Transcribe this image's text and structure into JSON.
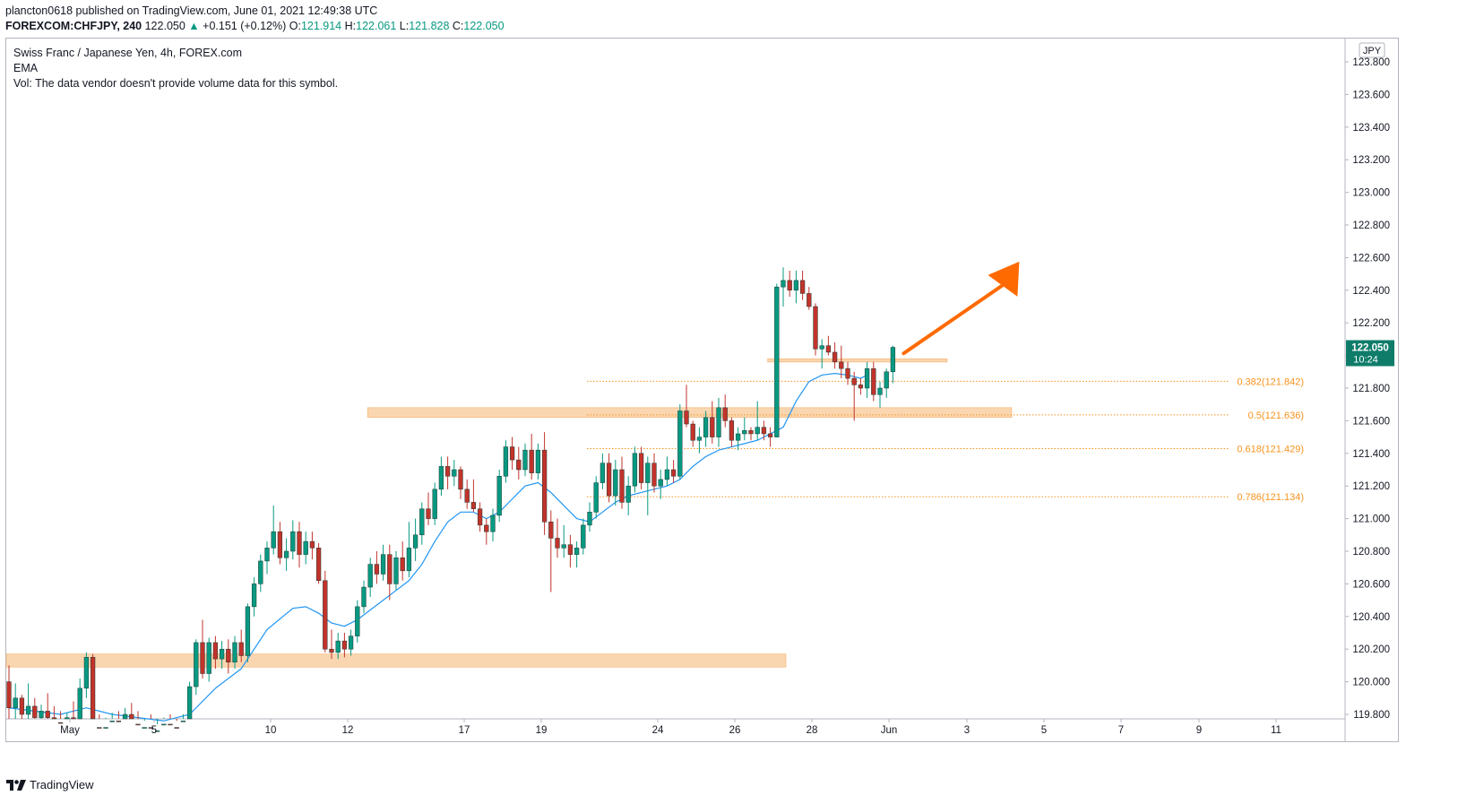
{
  "header": {
    "line1": "plancton0618 published on TradingView.com, June 01, 2021 12:49:38 UTC",
    "symbol": "FOREXCOM:CHFJPY, 240",
    "last": "122.050",
    "change": "+0.151 (+0.12%)",
    "o_label": "O:",
    "o_value": "121.914",
    "h_label": "H:",
    "h_value": "122.061",
    "l_label": "L:",
    "l_value": "121.828",
    "c_label": "C:",
    "c_value": "122.050"
  },
  "legend": {
    "title": "Swiss Franc / Japanese Yen, 4h, FOREX.com",
    "ema": "EMA",
    "vol": "Vol: The data vendor doesn't provide volume data for this symbol."
  },
  "footer": {
    "brand": "TradingView"
  },
  "colors": {
    "up": "#089981",
    "down": "#c2332b",
    "ema": "#2196f3",
    "fib": "#f7931e",
    "zone": "#f8c895",
    "arrow": "#ff6a00"
  },
  "chart_data": {
    "type": "candlestick",
    "currency": "JPY",
    "price_ticks": [
      "123.800",
      "123.600",
      "123.400",
      "123.200",
      "123.000",
      "122.800",
      "122.600",
      "122.400",
      "122.200",
      "122.000",
      "121.800",
      "121.600",
      "121.400",
      "121.200",
      "121.000",
      "120.800",
      "120.600",
      "120.400",
      "120.200",
      "120.000",
      "119.800"
    ],
    "price_tick_values": [
      123.8,
      123.6,
      123.4,
      123.2,
      123.0,
      122.8,
      122.6,
      122.4,
      122.2,
      122.0,
      121.8,
      121.6,
      121.4,
      121.2,
      121.0,
      120.8,
      120.6,
      120.4,
      120.2,
      120.0,
      119.8
    ],
    "ylim": [
      119.79,
      123.9
    ],
    "time_ticks": [
      "May",
      "5",
      "10",
      "12",
      "17",
      "19",
      "24",
      "26",
      "28",
      "Jun",
      "3",
      "5",
      "7",
      "9",
      "11"
    ],
    "last_price_label": "122.050",
    "countdown_label": "10:24",
    "fib_levels": [
      {
        "label": "0.382(121.842)",
        "value": 121.842
      },
      {
        "label": "0.5(121.636)",
        "value": 121.636
      },
      {
        "label": "0.618(121.429)",
        "value": 121.429
      },
      {
        "label": "0.786(121.134)",
        "value": 121.134
      }
    ],
    "zones": [
      {
        "from_bar": 0,
        "to_bar": 120,
        "low": 120.09,
        "high": 120.17
      },
      {
        "from_bar": 56,
        "to_bar": 155,
        "low": 121.62,
        "high": 121.68
      },
      {
        "from_bar": 118,
        "to_bar": 145,
        "low": 121.96,
        "high": 121.98
      }
    ],
    "arrow": {
      "from_bar": 132,
      "from_price": 121.98,
      "to_bar": 142,
      "to_price": 122.57
    },
    "candles": [
      [
        120.0,
        120.1,
        119.72,
        119.84
      ],
      [
        119.84,
        119.99,
        119.75,
        119.9
      ],
      [
        119.9,
        119.92,
        119.73,
        119.8
      ],
      [
        119.8,
        119.99,
        119.7,
        119.85
      ],
      [
        119.85,
        119.9,
        119.72,
        119.78
      ],
      [
        119.78,
        119.86,
        119.65,
        119.82
      ],
      [
        119.82,
        119.93,
        119.76,
        119.78
      ],
      [
        119.78,
        119.85,
        119.7,
        119.75
      ],
      [
        119.75,
        119.82,
        119.62,
        119.7
      ],
      [
        119.7,
        119.81,
        119.63,
        119.78
      ],
      [
        119.78,
        119.88,
        119.66,
        119.7
      ],
      [
        119.7,
        120.02,
        119.66,
        119.96
      ],
      [
        119.96,
        120.18,
        119.9,
        120.15
      ],
      [
        120.15,
        120.17,
        119.68,
        119.72
      ],
      [
        119.72,
        119.8,
        119.6,
        119.65
      ],
      [
        119.65,
        119.78,
        119.62,
        119.72
      ],
      [
        119.72,
        119.81,
        119.66,
        119.76
      ],
      [
        119.76,
        119.82,
        119.68,
        119.7
      ],
      [
        119.7,
        119.84,
        119.65,
        119.8
      ],
      [
        119.8,
        119.87,
        119.7,
        119.74
      ],
      [
        119.74,
        119.82,
        119.62,
        119.68
      ],
      [
        119.68,
        119.76,
        119.6,
        119.72
      ],
      [
        119.72,
        119.8,
        119.62,
        119.66
      ],
      [
        119.66,
        119.74,
        119.55,
        119.7
      ],
      [
        119.7,
        119.78,
        119.62,
        119.74
      ],
      [
        119.74,
        119.8,
        119.66,
        119.72
      ],
      [
        119.72,
        119.76,
        119.6,
        119.65
      ],
      [
        119.65,
        119.8,
        119.62,
        119.76
      ],
      [
        119.76,
        120.0,
        119.72,
        119.97
      ],
      [
        119.97,
        120.26,
        119.92,
        120.24
      ],
      [
        120.24,
        120.38,
        120.02,
        120.05
      ],
      [
        120.05,
        120.27,
        120.0,
        120.24
      ],
      [
        120.24,
        120.28,
        120.08,
        120.14
      ],
      [
        120.14,
        120.25,
        120.08,
        120.2
      ],
      [
        120.2,
        120.26,
        120.05,
        120.12
      ],
      [
        120.12,
        120.28,
        120.08,
        120.24
      ],
      [
        120.24,
        120.32,
        120.12,
        120.16
      ],
      [
        120.16,
        120.48,
        120.12,
        120.46
      ],
      [
        120.46,
        120.64,
        120.4,
        120.6
      ],
      [
        120.6,
        120.78,
        120.55,
        120.74
      ],
      [
        120.74,
        120.86,
        120.66,
        120.82
      ],
      [
        120.82,
        121.08,
        120.78,
        120.92
      ],
      [
        120.92,
        120.98,
        120.72,
        120.76
      ],
      [
        120.76,
        120.88,
        120.68,
        120.8
      ],
      [
        120.8,
        120.99,
        120.75,
        120.92
      ],
      [
        120.92,
        120.98,
        120.7,
        120.78
      ],
      [
        120.78,
        120.92,
        120.72,
        120.86
      ],
      [
        120.86,
        120.92,
        120.75,
        120.82
      ],
      [
        120.82,
        120.85,
        120.6,
        120.62
      ],
      [
        120.62,
        120.68,
        120.18,
        120.2
      ],
      [
        120.2,
        120.32,
        120.14,
        120.18
      ],
      [
        120.18,
        120.3,
        120.14,
        120.25
      ],
      [
        120.25,
        120.3,
        120.15,
        120.2
      ],
      [
        120.2,
        120.32,
        120.16,
        120.28
      ],
      [
        120.28,
        120.5,
        120.24,
        120.46
      ],
      [
        120.46,
        120.62,
        120.42,
        120.58
      ],
      [
        120.58,
        120.76,
        120.52,
        120.72
      ],
      [
        120.72,
        120.8,
        120.6,
        120.66
      ],
      [
        120.66,
        120.84,
        120.62,
        120.78
      ],
      [
        120.78,
        120.84,
        120.5,
        120.6
      ],
      [
        120.6,
        120.8,
        120.56,
        120.76
      ],
      [
        120.76,
        120.86,
        120.62,
        120.68
      ],
      [
        120.68,
        120.98,
        120.64,
        120.82
      ],
      [
        120.82,
        121.0,
        120.74,
        120.9
      ],
      [
        120.9,
        121.1,
        120.84,
        121.06
      ],
      [
        121.06,
        121.16,
        120.96,
        121.0
      ],
      [
        121.0,
        121.22,
        120.96,
        121.18
      ],
      [
        121.18,
        121.38,
        121.14,
        121.32
      ],
      [
        121.32,
        121.38,
        121.18,
        121.26
      ],
      [
        121.26,
        121.36,
        121.2,
        121.3
      ],
      [
        121.3,
        121.32,
        121.12,
        121.18
      ],
      [
        121.18,
        121.24,
        121.06,
        121.1
      ],
      [
        121.1,
        121.24,
        121.04,
        121.06
      ],
      [
        121.06,
        121.1,
        120.92,
        120.96
      ],
      [
        120.96,
        121.0,
        120.84,
        120.92
      ],
      [
        120.92,
        121.06,
        120.86,
        121.02
      ],
      [
        121.02,
        121.3,
        120.98,
        121.26
      ],
      [
        121.26,
        121.48,
        121.22,
        121.44
      ],
      [
        121.44,
        121.5,
        121.3,
        121.36
      ],
      [
        121.36,
        121.44,
        121.24,
        121.3
      ],
      [
        121.3,
        121.46,
        121.26,
        121.42
      ],
      [
        121.42,
        121.52,
        121.24,
        121.28
      ],
      [
        121.28,
        121.46,
        121.24,
        121.42
      ],
      [
        121.42,
        121.53,
        120.9,
        120.98
      ],
      [
        120.98,
        121.05,
        120.55,
        120.88
      ],
      [
        120.88,
        121.0,
        120.76,
        120.82
      ],
      [
        120.82,
        120.96,
        120.76,
        120.84
      ],
      [
        120.84,
        120.9,
        120.7,
        120.78
      ],
      [
        120.78,
        120.86,
        120.7,
        120.82
      ],
      [
        120.82,
        121.0,
        120.78,
        120.96
      ],
      [
        120.96,
        121.1,
        120.92,
        121.04
      ],
      [
        121.04,
        121.26,
        121.0,
        121.22
      ],
      [
        121.22,
        121.4,
        121.18,
        121.34
      ],
      [
        121.34,
        121.4,
        121.1,
        121.14
      ],
      [
        121.14,
        121.36,
        121.08,
        121.3
      ],
      [
        121.3,
        121.38,
        121.06,
        121.1
      ],
      [
        121.1,
        121.26,
        121.02,
        121.2
      ],
      [
        121.2,
        121.44,
        121.16,
        121.4
      ],
      [
        121.4,
        121.44,
        121.18,
        121.22
      ],
      [
        121.22,
        121.38,
        121.02,
        121.34
      ],
      [
        121.34,
        121.4,
        121.16,
        121.2
      ],
      [
        121.2,
        121.3,
        121.12,
        121.24
      ],
      [
        121.24,
        121.38,
        121.2,
        121.3
      ],
      [
        121.3,
        121.36,
        121.22,
        121.26
      ],
      [
        121.26,
        121.7,
        121.24,
        121.66
      ],
      [
        121.66,
        121.82,
        121.56,
        121.58
      ],
      [
        121.58,
        121.6,
        121.44,
        121.48
      ],
      [
        121.48,
        121.56,
        121.4,
        121.5
      ],
      [
        121.5,
        121.66,
        121.44,
        121.62
      ],
      [
        121.62,
        121.72,
        121.46,
        121.5
      ],
      [
        121.5,
        121.74,
        121.44,
        121.68
      ],
      [
        121.68,
        121.76,
        121.56,
        121.6
      ],
      [
        121.6,
        121.62,
        121.44,
        121.48
      ],
      [
        121.48,
        121.56,
        121.42,
        121.52
      ],
      [
        121.52,
        121.62,
        121.48,
        121.54
      ],
      [
        121.54,
        121.56,
        121.48,
        121.52
      ],
      [
        121.52,
        121.72,
        121.48,
        121.56
      ],
      [
        121.56,
        121.6,
        121.48,
        121.52
      ],
      [
        121.52,
        121.56,
        121.44,
        121.5
      ],
      [
        121.5,
        122.44,
        121.5,
        122.42
      ],
      [
        122.42,
        122.54,
        122.3,
        122.46
      ],
      [
        122.46,
        122.52,
        122.36,
        122.4
      ],
      [
        122.4,
        122.52,
        122.32,
        122.46
      ],
      [
        122.46,
        122.52,
        122.34,
        122.38
      ],
      [
        122.38,
        122.42,
        122.28,
        122.3
      ],
      [
        122.3,
        122.32,
        122.0,
        122.04
      ],
      [
        122.04,
        122.1,
        121.92,
        122.06
      ],
      [
        122.06,
        122.12,
        122.0,
        122.02
      ],
      [
        122.02,
        122.08,
        121.92,
        121.96
      ],
      [
        121.96,
        122.06,
        121.86,
        121.92
      ],
      [
        121.92,
        121.96,
        121.82,
        121.86
      ],
      [
        121.86,
        121.9,
        121.6,
        121.82
      ],
      [
        121.82,
        121.86,
        121.76,
        121.8
      ],
      [
        121.8,
        121.96,
        121.74,
        121.92
      ],
      [
        121.92,
        121.96,
        121.72,
        121.76
      ],
      [
        121.76,
        121.84,
        121.68,
        121.8
      ],
      [
        121.8,
        121.92,
        121.74,
        121.9
      ],
      [
        121.9,
        122.06,
        121.83,
        122.05
      ]
    ],
    "ema": [
      [
        0,
        119.84
      ],
      [
        4,
        119.82
      ],
      [
        8,
        119.8
      ],
      [
        12,
        119.84
      ],
      [
        16,
        119.8
      ],
      [
        20,
        119.78
      ],
      [
        24,
        119.76
      ],
      [
        28,
        119.8
      ],
      [
        32,
        119.96
      ],
      [
        36,
        120.08
      ],
      [
        40,
        120.32
      ],
      [
        44,
        120.45
      ],
      [
        46,
        120.46
      ],
      [
        48,
        120.42
      ],
      [
        50,
        120.36
      ],
      [
        52,
        120.34
      ],
      [
        54,
        120.38
      ],
      [
        56,
        120.44
      ],
      [
        58,
        120.5
      ],
      [
        60,
        120.56
      ],
      [
        62,
        120.62
      ],
      [
        64,
        120.72
      ],
      [
        66,
        120.86
      ],
      [
        68,
        120.98
      ],
      [
        70,
        121.04
      ],
      [
        72,
        121.04
      ],
      [
        74,
        121.0
      ],
      [
        76,
        121.04
      ],
      [
        78,
        121.12
      ],
      [
        80,
        121.2
      ],
      [
        82,
        121.22
      ],
      [
        84,
        121.16
      ],
      [
        86,
        121.08
      ],
      [
        88,
        121.0
      ],
      [
        90,
        120.98
      ],
      [
        92,
        121.04
      ],
      [
        94,
        121.1
      ],
      [
        96,
        121.14
      ],
      [
        98,
        121.16
      ],
      [
        100,
        121.18
      ],
      [
        102,
        121.2
      ],
      [
        104,
        121.24
      ],
      [
        106,
        121.32
      ],
      [
        108,
        121.38
      ],
      [
        110,
        121.42
      ],
      [
        112,
        121.44
      ],
      [
        114,
        121.46
      ],
      [
        116,
        121.48
      ],
      [
        118,
        121.52
      ],
      [
        120,
        121.56
      ],
      [
        122,
        121.72
      ],
      [
        124,
        121.84
      ],
      [
        126,
        121.88
      ],
      [
        128,
        121.89
      ],
      [
        130,
        121.88
      ],
      [
        132,
        121.86
      ],
      [
        133,
        121.88
      ]
    ]
  }
}
